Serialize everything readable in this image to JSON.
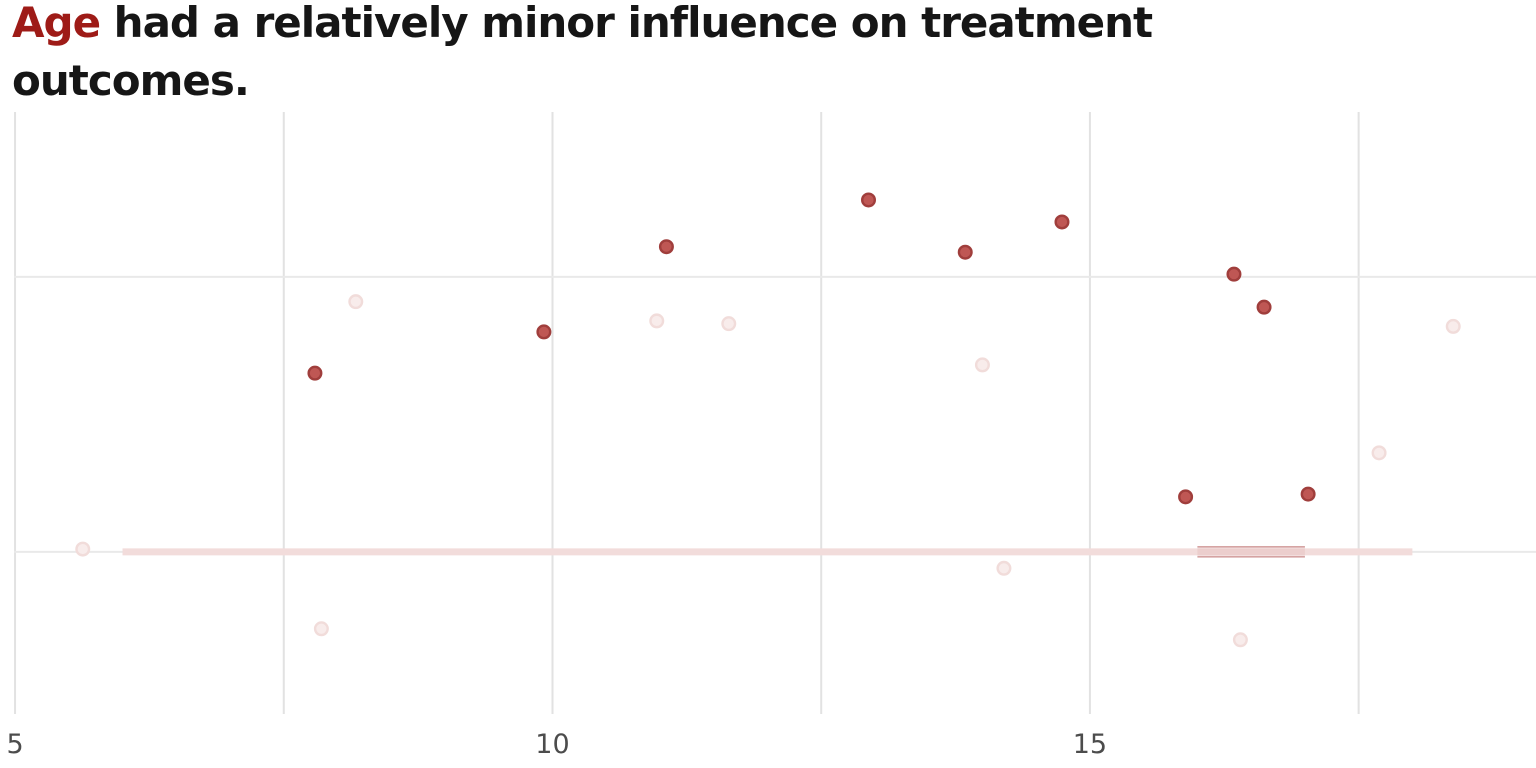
{
  "title": {
    "highlight": "Age",
    "rest": " had a relatively minor influence on treatment outcomes."
  },
  "colors": {
    "background": "#ffffff",
    "title_text": "#161616",
    "title_highlight": "#9e1b17",
    "gridline_vertical": "#e2e2e2",
    "gridline_horizontal": "#e9e9e9",
    "tick_label": "#4c4c4c",
    "point_highlight_fill": "#bf5754",
    "point_highlight_stroke": "#a03e3c",
    "point_faded_fill": "#f8eceb",
    "point_faded_stroke": "#f1dcda",
    "trend_all": "#f2dcdb",
    "trend_highlight_fill": "#dba5a3",
    "trend_highlight_edge": "#cf9795"
  },
  "chart_data": {
    "type": "scatter",
    "title": "Age had a relatively minor influence on treatment outcomes.",
    "xlabel": "",
    "ylabel": "",
    "x_ticks": [
      5,
      10,
      15
    ],
    "x_tick_labels": [
      "5",
      "10",
      "15"
    ],
    "x_gridlines": [
      5,
      7.5,
      10,
      12.5,
      15,
      17.5
    ],
    "y_gridlines": [
      0,
      1
    ],
    "xlim": [
      4.86,
      19.15
    ],
    "ylim": [
      -0.59,
      1.6
    ],
    "grid": true,
    "legend": false,
    "series": [
      {
        "name": "highlighted",
        "points": [
          [
            7.79,
            0.65
          ],
          [
            9.92,
            0.8
          ],
          [
            11.06,
            1.11
          ],
          [
            12.94,
            1.28
          ],
          [
            13.84,
            1.09
          ],
          [
            14.74,
            1.2
          ],
          [
            16.34,
            1.01
          ],
          [
            16.62,
            0.89
          ],
          [
            15.89,
            0.2
          ],
          [
            17.03,
            0.21
          ]
        ]
      },
      {
        "name": "faded",
        "points": [
          [
            5.63,
            0.01
          ],
          [
            8.17,
            0.91
          ],
          [
            7.85,
            -0.28
          ],
          [
            10.97,
            0.84
          ],
          [
            11.64,
            0.83
          ],
          [
            14.0,
            0.68
          ],
          [
            14.2,
            -0.06
          ],
          [
            16.4,
            -0.32
          ],
          [
            17.69,
            0.36
          ],
          [
            18.38,
            0.82
          ]
        ]
      }
    ],
    "trend_lines": [
      {
        "name": "all-data-trend",
        "x_start": 6.0,
        "x_end": 18.0,
        "y": 0.0
      },
      {
        "name": "highlight-trend",
        "x_start": 16.0,
        "x_end": 17.0,
        "y": 0.0
      }
    ]
  }
}
